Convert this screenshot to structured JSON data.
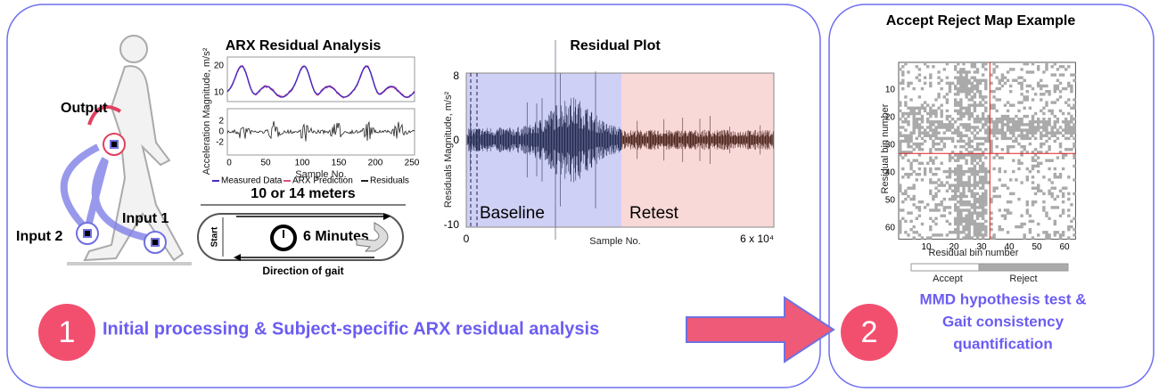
{
  "gait_figure": {
    "output": "Output",
    "input2": "Input 2",
    "input1": "Input 1"
  },
  "arx_panel": {
    "title": "ARX Residual Analysis",
    "y_label": "Acceleration Magnitude, m/s²",
    "top_yticks": [
      "10",
      "20"
    ],
    "bottom_yticks": [
      "2",
      "0",
      "-2"
    ],
    "xticks": [
      "0",
      "50",
      "100",
      "150",
      "200",
      "250"
    ],
    "x_label": "Sample No.",
    "legend": [
      "Measured Data",
      "ARX Prediction",
      "Residuals"
    ]
  },
  "track": {
    "distance": "10 or 14 meters",
    "start": "Start",
    "duration": "6 Minutes",
    "direction": "Direction of gait"
  },
  "residual_plot": {
    "title": "Residual Plot",
    "y_label": "Residuals Magnitude, m/s²",
    "yticks": [
      "8",
      "0",
      "-10"
    ],
    "x_start": "0",
    "x_label": "Sample No.",
    "x_end": "6 x 10⁴",
    "baseline": "Baseline",
    "retest": "Retest"
  },
  "map": {
    "title": "Accept Reject Map Example",
    "y_label": "Residual bin number",
    "yticks": [
      "10",
      "20",
      "30",
      "40",
      "50",
      "60"
    ],
    "xticks": [
      "10",
      "20",
      "30",
      "40",
      "50",
      "60"
    ],
    "x_label": "Residual bin number",
    "legend": [
      "Accept",
      "Reject"
    ]
  },
  "step1": {
    "number": "1",
    "text": "Initial processing & Subject-specific ARX residual analysis"
  },
  "step2": {
    "number": "2",
    "lines": [
      "MMD hypothesis test &",
      "Gait consistency",
      "quantification"
    ]
  }
}
